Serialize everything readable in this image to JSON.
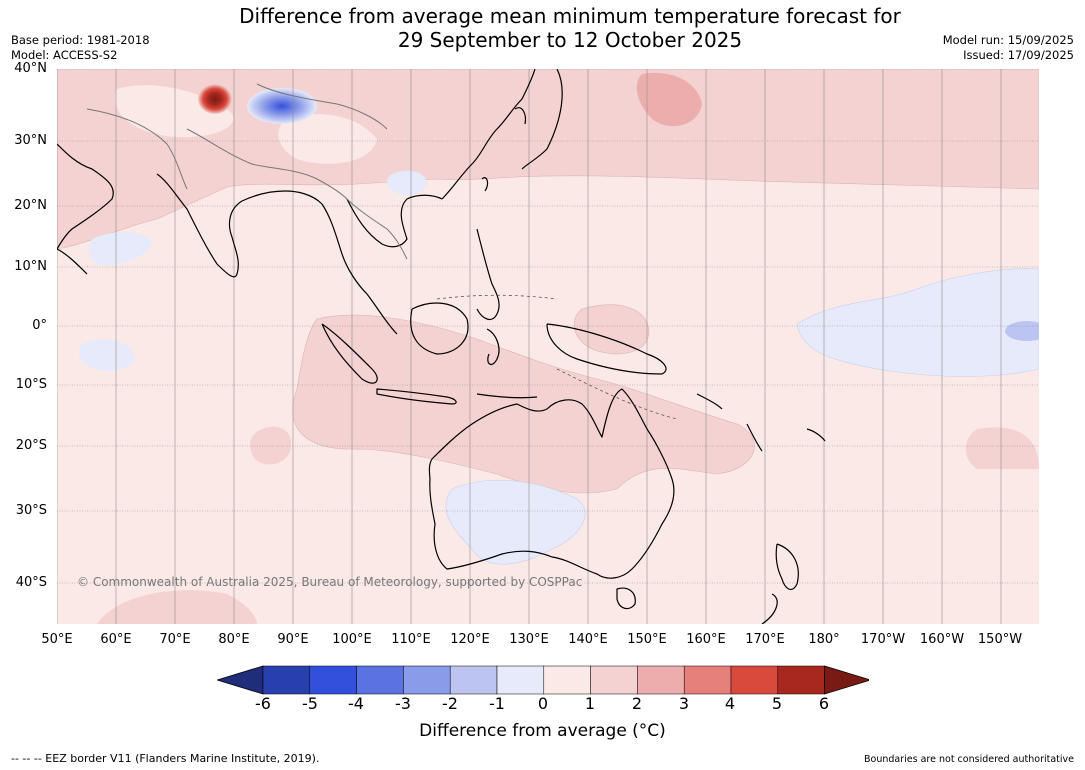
{
  "title_line1": "Difference from average mean minimum temperature forecast for",
  "title_line2": "29 September to 12 October 2025",
  "meta": {
    "base_period": "Base period: 1981-2018",
    "model": "Model: ACCESS-S2",
    "model_run": "Model run: 15/09/2025",
    "issued": "Issued: 17/09/2025"
  },
  "map": {
    "lat_labels": [
      "40°N",
      "30°N",
      "20°N",
      "10°N",
      "0°",
      "10°S",
      "20°S",
      "30°S",
      "40°S"
    ],
    "lon_labels": [
      "50°E",
      "60°E",
      "70°E",
      "80°E",
      "90°E",
      "100°E",
      "110°E",
      "120°E",
      "130°E",
      "140°E",
      "150°E",
      "160°E",
      "170°E",
      "180°",
      "170°W",
      "160°W",
      "150°W"
    ],
    "copyright": "© Commonwealth of Australia 2025, Bureau of Meteorology, supported by COSPPac"
  },
  "colorbar": {
    "ticks": [
      "-6",
      "-5",
      "-4",
      "-3",
      "-2",
      "-1",
      "0",
      "1",
      "2",
      "3",
      "4",
      "5",
      "6"
    ],
    "colors": [
      "#1f2d7a",
      "#283fb0",
      "#3350dd",
      "#5b73e2",
      "#8a9be9",
      "#bcc5f2",
      "#e6eafa",
      "#fbe9e8",
      "#f3d2d1",
      "#ecaeac",
      "#e6807a",
      "#d94a3c",
      "#a82820",
      "#7a1a14"
    ],
    "label": "Difference from average (°C)"
  },
  "footer": {
    "eez": "--  --  -- EEZ border V11 (Flanders Marine Institute, 2019).",
    "disclaimer": "Boundaries are not considered authoritative"
  }
}
